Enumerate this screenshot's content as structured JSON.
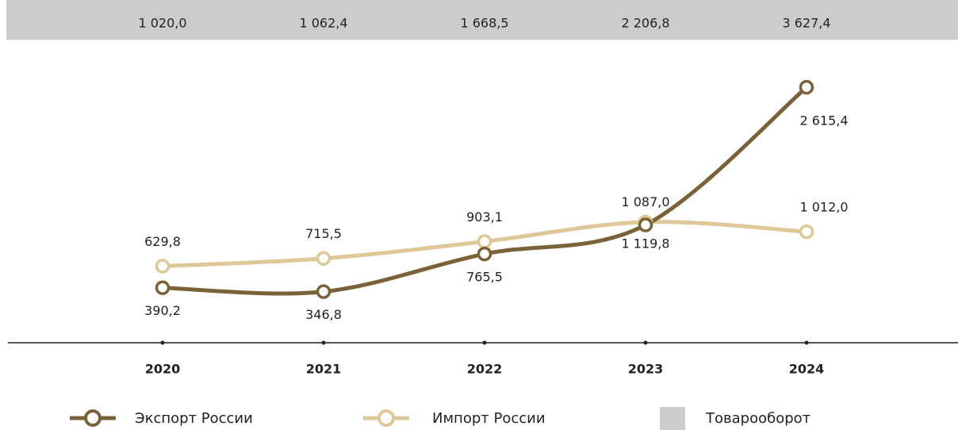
{
  "chart_data": {
    "type": "line",
    "categories": [
      "2020",
      "2021",
      "2022",
      "2023",
      "2024"
    ],
    "series": [
      {
        "name": "Экспорт России",
        "color": "#7a6138",
        "values": [
          390.2,
          346.8,
          765.5,
          1087.0,
          2615.4
        ],
        "value_labels": [
          "390,2",
          "346,8",
          "765,5",
          "1 087,0",
          "2 615,4"
        ]
      },
      {
        "name": "Импорт России",
        "color": "#dfc898",
        "values": [
          629.8,
          715.5,
          903.1,
          1119.8,
          1012.0
        ],
        "value_labels": [
          "629,8",
          "715,5",
          "903,1",
          "1 119,8",
          "1 012,0"
        ]
      },
      {
        "name": "Товарооборот",
        "color": "#cccccc",
        "values": [
          1020.0,
          1062.4,
          1668.5,
          2206.8,
          3627.4
        ],
        "value_labels": [
          "1 020,0",
          "1 062,4",
          "1 668,5",
          "2 206,8",
          "3 627,4"
        ]
      }
    ]
  }
}
